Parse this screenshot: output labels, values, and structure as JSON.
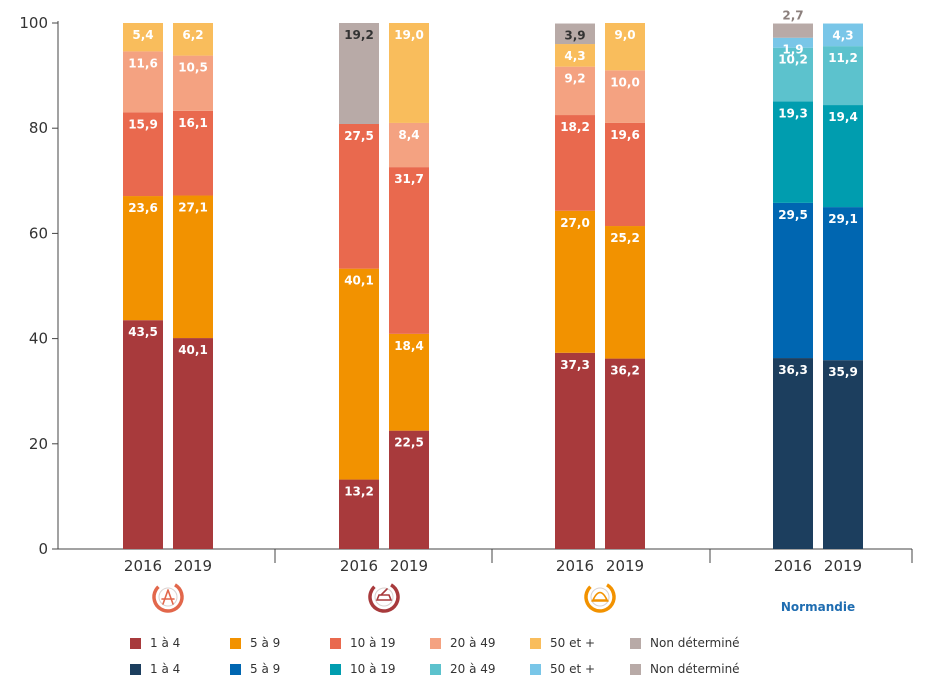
{
  "chart_data": {
    "type": "stacked-bar",
    "ylim": [
      0,
      100
    ],
    "yticks": [
      0,
      20,
      40,
      60,
      80,
      100
    ],
    "years": [
      "2016",
      "2019"
    ],
    "groups": [
      {
        "icon": "architect-compass-icon",
        "icon_color": "#e2674b",
        "label": "",
        "palette": "sector"
      },
      {
        "icon": "car-repair-icon",
        "icon_color": "#a83a3c",
        "label": "",
        "palette": "sector"
      },
      {
        "icon": "hard-hat-icon",
        "icon_color": "#f29200",
        "label": "",
        "palette": "sector"
      },
      {
        "icon": "",
        "icon_color": "",
        "label": "Normandie",
        "palette": "region"
      }
    ],
    "series": [
      {
        "key": "1a4",
        "values": [
          [
            43.5,
            40.1
          ],
          [
            13.2,
            22.5
          ],
          [
            37.3,
            36.2
          ],
          [
            36.3,
            35.9
          ]
        ]
      },
      {
        "key": "5a9",
        "values": [
          [
            23.6,
            27.1
          ],
          [
            40.1,
            18.4
          ],
          [
            27.0,
            25.2
          ],
          [
            29.5,
            29.1
          ]
        ]
      },
      {
        "key": "10a19",
        "values": [
          [
            15.9,
            16.1
          ],
          [
            27.5,
            31.7
          ],
          [
            18.2,
            19.6
          ],
          [
            19.3,
            19.4
          ]
        ]
      },
      {
        "key": "20a49",
        "values": [
          [
            11.6,
            10.5
          ],
          [
            0,
            8.4
          ],
          [
            9.2,
            10.0
          ],
          [
            10.2,
            11.2
          ]
        ]
      },
      {
        "key": "50plus",
        "values": [
          [
            5.4,
            6.2
          ],
          [
            0,
            19.0
          ],
          [
            4.3,
            9.0
          ],
          [
            1.9,
            4.3
          ]
        ]
      },
      {
        "key": "nd",
        "values": [
          [
            0,
            0
          ],
          [
            19.2,
            0
          ],
          [
            3.9,
            0
          ],
          [
            2.7,
            0
          ]
        ]
      }
    ],
    "colors": {
      "sector": [
        "#a83a3c",
        "#f29200",
        "#e9694e",
        "#f4a281",
        "#f9bd5c",
        "#b8aaa7"
      ],
      "region": [
        "#1c3e5e",
        "#0066b1",
        "#009daf",
        "#5cc2cd",
        "#79c6e8",
        "#b8aaa7"
      ]
    },
    "label_colors": {
      "sector": [
        "#ffffff",
        "#ffffff",
        "#ffffff",
        "#ffffff",
        "#ffffff",
        "#333333"
      ],
      "region": [
        "#ffffff",
        "#ffffff",
        "#ffffff",
        "#ffffff",
        "#ffffff",
        "#8c807d"
      ]
    }
  },
  "legend": {
    "rows": [
      {
        "palette": "sector",
        "items": [
          "1 à 4",
          "5 à 9",
          "10 à 19",
          "20 à 49",
          "50 et +",
          "Non déterminé"
        ]
      },
      {
        "palette": "region",
        "items": [
          "1 à 4",
          "5 à 9",
          "10 à 19",
          "20 à 49",
          "50 et +",
          "Non déterminé"
        ]
      }
    ]
  }
}
